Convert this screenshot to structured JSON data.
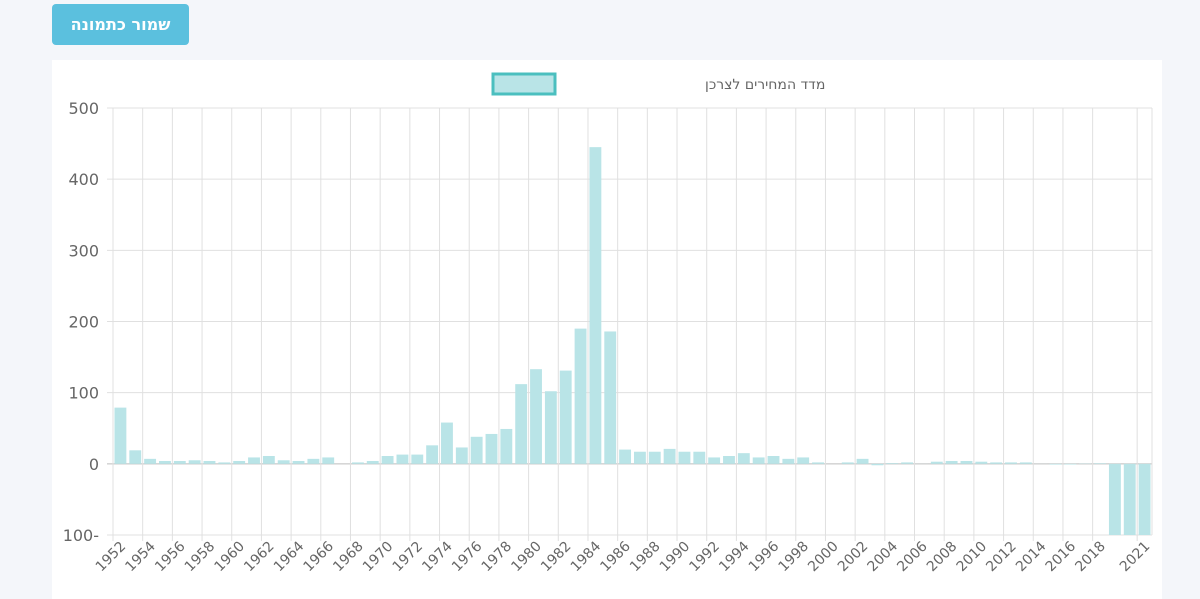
{
  "toolbar": {
    "save_image_label": "שמור כתמונה"
  },
  "colors": {
    "bar_fill": "#b9e4e7",
    "legend_border": "#4bbfbf",
    "button_bg": "#5bc0de",
    "grid": "#e0e0e0",
    "zero_line": "#bdbdbd"
  },
  "chart_data": {
    "type": "bar",
    "legend": {
      "position": "top-center"
    },
    "grid": true,
    "ylim": [
      -100,
      500
    ],
    "y_ticks": [
      "500",
      "400",
      "300",
      "200",
      "100",
      "0",
      "100-"
    ],
    "x_tick_labels": [
      "1952",
      "1954",
      "1956",
      "1958",
      "1960",
      "1962",
      "1964",
      "1966",
      "1968",
      "1970",
      "1972",
      "1974",
      "1976",
      "1978",
      "1980",
      "1982",
      "1984",
      "1986",
      "1988",
      "1990",
      "1992",
      "1994",
      "1996",
      "1998",
      "2000",
      "2002",
      "2004",
      "2006",
      "2008",
      "2010",
      "2012",
      "2014",
      "2016",
      "2018",
      "2021"
    ],
    "series": [
      {
        "name": "מדד המחירים לצרכן",
        "x": [
          1952,
          1953,
          1954,
          1955,
          1956,
          1957,
          1958,
          1959,
          1960,
          1961,
          1962,
          1963,
          1964,
          1965,
          1966,
          1967,
          1968,
          1969,
          1970,
          1971,
          1972,
          1973,
          1974,
          1975,
          1976,
          1977,
          1978,
          1979,
          1980,
          1981,
          1982,
          1983,
          1984,
          1985,
          1986,
          1987,
          1988,
          1989,
          1990,
          1991,
          1992,
          1993,
          1994,
          1995,
          1996,
          1997,
          1998,
          1999,
          2000,
          2001,
          2002,
          2003,
          2004,
          2005,
          2006,
          2007,
          2008,
          2009,
          2010,
          2011,
          2012,
          2013,
          2014,
          2015,
          2016,
          2017,
          2018,
          2019,
          2020,
          2021
        ],
        "values": [
          79,
          19,
          7,
          4,
          4,
          5,
          4,
          2,
          4,
          9,
          11,
          5,
          4,
          7,
          9,
          0,
          2,
          4,
          11,
          13,
          13,
          26,
          58,
          23,
          38,
          42,
          49,
          112,
          133,
          102,
          131,
          190,
          445,
          186,
          20,
          17,
          17,
          21,
          17,
          17,
          9,
          11,
          15,
          9,
          11,
          7,
          9,
          2,
          0,
          2,
          7,
          -2,
          1,
          2,
          -0.1,
          3,
          4,
          4,
          3,
          2,
          2,
          2,
          -0.1,
          -1,
          -0.9,
          0.4,
          0.8,
          -100,
          -100,
          -100
        ]
      }
    ]
  }
}
